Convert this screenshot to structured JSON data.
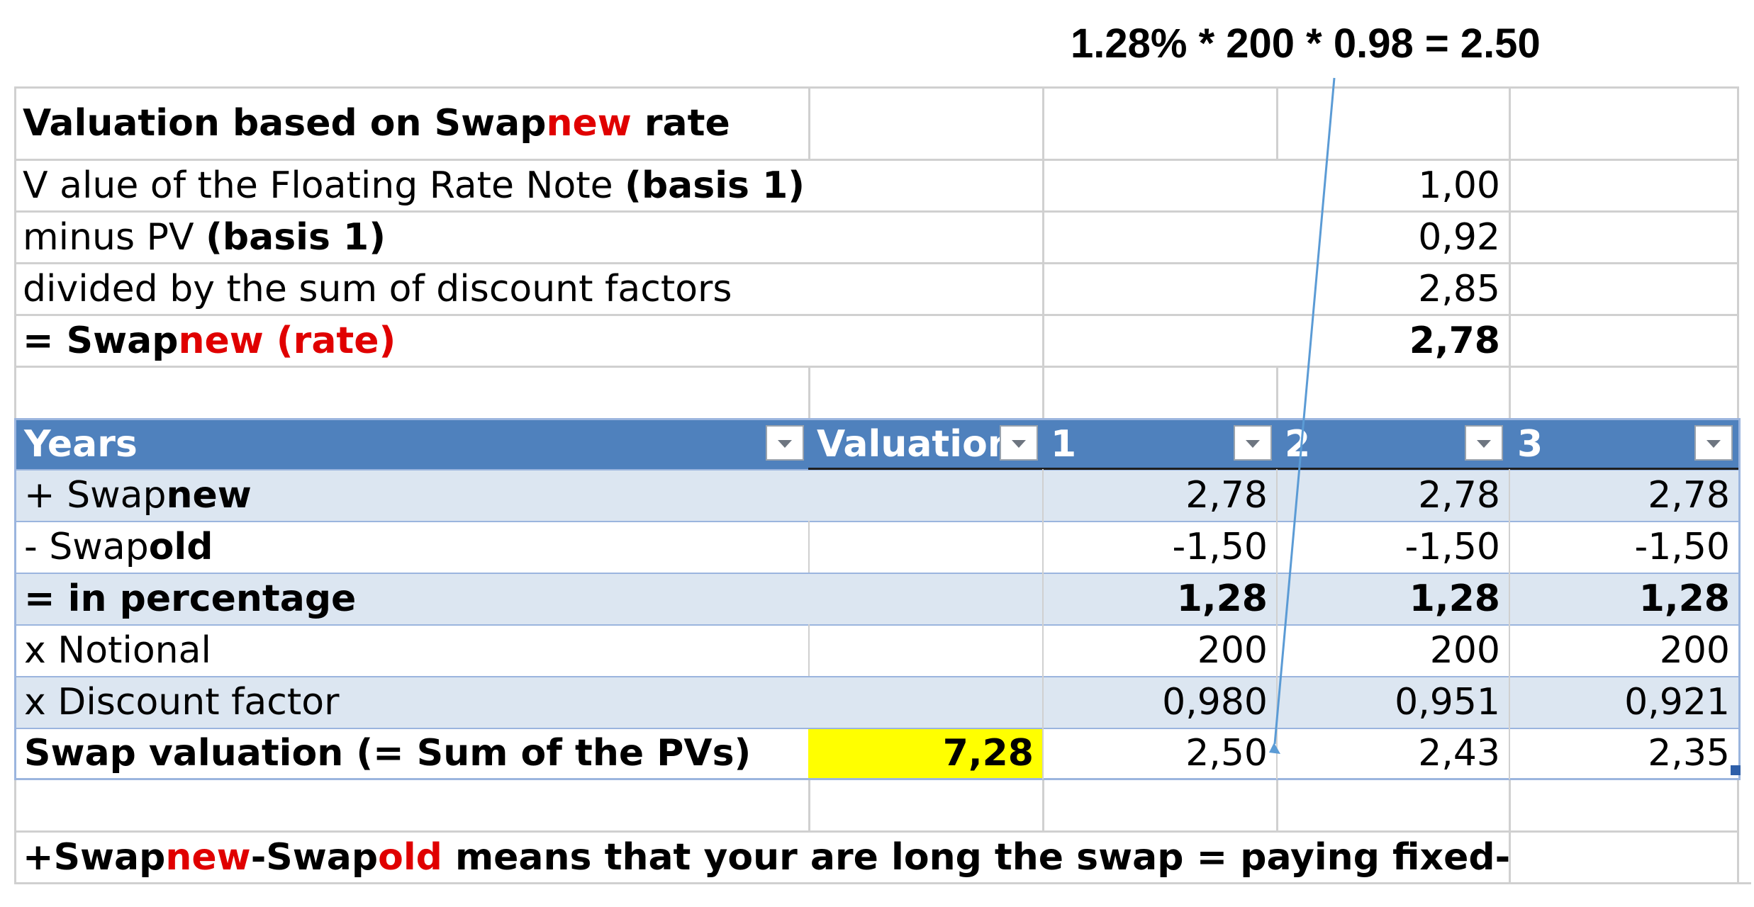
{
  "annotation": "1.28% * 200 * 0.98 = 2.50",
  "top_section": {
    "title_parts": [
      "Valuation based on Swap",
      "new",
      " rate"
    ],
    "rows": [
      {
        "label_parts": [
          "V alue of the Floating Rate Note ",
          "(basis 1)"
        ],
        "value": "1,00"
      },
      {
        "label_parts": [
          "minus PV ",
          "(basis 1)"
        ],
        "value": "0,92"
      },
      {
        "label": "divided by the sum of discount factors",
        "value": "2,85"
      },
      {
        "label_parts": [
          "= Swap",
          "new (rate)"
        ],
        "value": "2,78"
      }
    ]
  },
  "table": {
    "headers": [
      "Years",
      "Valuation",
      "1",
      "2",
      "3"
    ],
    "rows": [
      {
        "label_parts": [
          "+ Swap",
          "new"
        ],
        "valuation": "",
        "values": [
          "2,78",
          "2,78",
          "2,78"
        ]
      },
      {
        "label_parts": [
          "- Swap",
          "old"
        ],
        "valuation": "",
        "values": [
          "-1,50",
          "-1,50",
          "-1,50"
        ]
      },
      {
        "label": "= in percentage",
        "valuation": "",
        "values": [
          "1,28",
          "1,28",
          "1,28"
        ]
      },
      {
        "label": "x Notional",
        "valuation": "",
        "values": [
          "200",
          "200",
          "200"
        ]
      },
      {
        "label": "x Discount factor",
        "valuation": "",
        "values": [
          "0,980",
          "0,951",
          "0,921"
        ]
      },
      {
        "label": "Swap valuation (= Sum of the PVs)",
        "valuation": "7,28",
        "values": [
          "2,50",
          "2,43",
          "2,35"
        ]
      }
    ]
  },
  "footer_parts": [
    "+Swap",
    "new",
    "-Swap",
    "old",
    " means that your are long the swap = paying fixed-rate"
  ],
  "colors": {
    "header_blue": "#4f81bd",
    "band_blue": "#dce6f1",
    "highlight_yellow": "#ffff00",
    "red_text": "#e00000",
    "arrow": "#5b9bd5"
  }
}
